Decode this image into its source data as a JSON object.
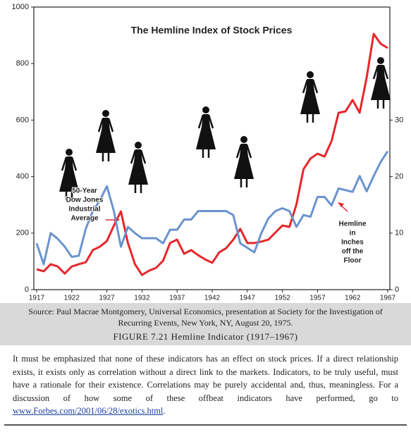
{
  "chart_data": {
    "type": "line",
    "title": "The Hemline Index of Stock Prices",
    "x": [
      1917,
      1918,
      1919,
      1920,
      1921,
      1922,
      1923,
      1924,
      1925,
      1926,
      1927,
      1928,
      1929,
      1930,
      1931,
      1932,
      1933,
      1934,
      1935,
      1936,
      1937,
      1938,
      1939,
      1940,
      1941,
      1942,
      1943,
      1944,
      1945,
      1946,
      1947,
      1948,
      1949,
      1950,
      1951,
      1952,
      1953,
      1954,
      1955,
      1956,
      1957,
      1958,
      1959,
      1960,
      1961,
      1962,
      1963,
      1964,
      1965,
      1966,
      1967
    ],
    "xlim": [
      1917,
      1967
    ],
    "xticks": [
      1917,
      1922,
      1927,
      1932,
      1937,
      1942,
      1947,
      1952,
      1957,
      1962,
      1967
    ],
    "ylim": [
      0,
      1000
    ],
    "yticks": [
      0,
      200,
      400,
      600,
      800,
      1000
    ],
    "y2lim": [
      0,
      50
    ],
    "y2ticks": [
      0,
      10,
      20,
      30
    ],
    "series": [
      {
        "color": "#e8262b",
        "axis": "y",
        "values": [
          72,
          65,
          90,
          82,
          57,
          82,
          90,
          97,
          140,
          152,
          172,
          227,
          277,
          165,
          90,
          52,
          67,
          77,
          102,
          165,
          177,
          127,
          140,
          122,
          107,
          95,
          132,
          147,
          177,
          215,
          165,
          165,
          170,
          177,
          202,
          227,
          222,
          302,
          426,
          464,
          481,
          471,
          526,
          626,
          631,
          671,
          626,
          751,
          905,
          870,
          855
        ]
      },
      {
        "color": "#6b93cf",
        "axis": "y2",
        "values": [
          8.2,
          4.5,
          10,
          9,
          7.6,
          5.8,
          6,
          10.8,
          13.9,
          15.8,
          18.3,
          13.9,
          7.6,
          11.1,
          10,
          9.1,
          9.1,
          9.1,
          8.2,
          10.6,
          10.6,
          12.4,
          12.4,
          13.9,
          13.9,
          13.9,
          13.9,
          13.9,
          13.2,
          8.2,
          7.4,
          6.6,
          10,
          12.6,
          13.9,
          14.4,
          13.9,
          11.1,
          13.2,
          12.9,
          16.4,
          16.4,
          14.9,
          17.9,
          17.6,
          17.3,
          20.1,
          17.4,
          20.1,
          22.6,
          24.5
        ]
      }
    ],
    "annotations": [
      [
        "50-Year",
        "Dow Jones",
        "Industrial",
        "Average"
      ],
      [
        "Hemline",
        "in",
        "Inches",
        "off the",
        "Floor"
      ]
    ]
  },
  "source": "Source: Paul Macrae Montgomery, Universal Economics, presentation at Society for the Investigation of Recurring Events, New York, NY, August 20, 1975.",
  "caption": "FIGURE 7.21 Hemline Indicator (1917–1967)",
  "paragraph": {
    "before": "It must be emphasized that none of these indicators has an effect on stock prices. If a direct relationship exists, it exists only as correlation without a direct link to the markets. Indicators, to be truly useful, must have a rationale for their existence. Correlations may be purely accidental and, thus, meaningless. For a discussion of how some of these offbeat indicators have performed, go to ",
    "link": "www.Forbes.com/2001/06/28/exotics.html",
    "after": "."
  }
}
